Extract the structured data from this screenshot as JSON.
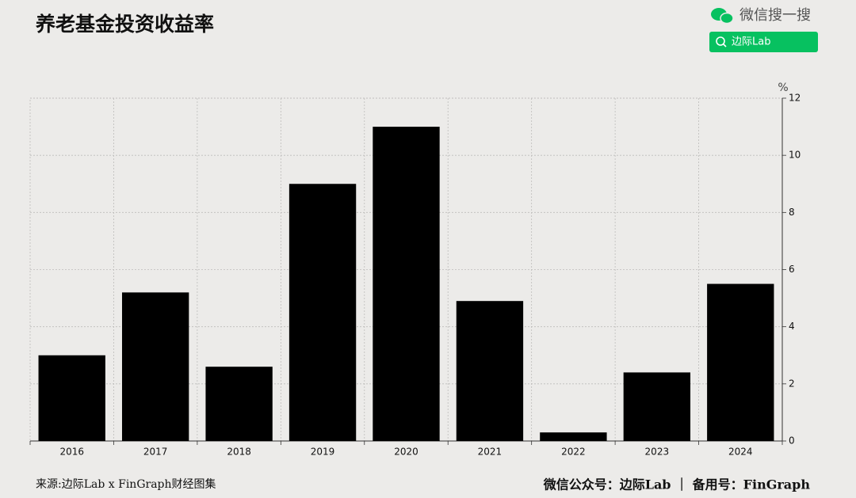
{
  "chart_data": {
    "type": "bar",
    "title": "养老基金投资收益率",
    "search_label": "微信搜一搜",
    "search_button": "边际Lab",
    "y_label": "%",
    "categories": [
      "2016",
      "2017",
      "2018",
      "2019",
      "2020",
      "2021",
      "2022",
      "2023",
      "2024"
    ],
    "values": [
      3.0,
      5.2,
      2.6,
      9.0,
      11.0,
      4.9,
      0.3,
      2.4,
      5.5
    ],
    "color": "#000000",
    "ylim": [
      0,
      12
    ],
    "yticks": [
      0,
      2,
      4,
      6,
      8,
      10,
      12
    ],
    "grid": true,
    "source": "来源:边际Lab x FinGraph财经图集",
    "footer": "微信公众号：边际Lab ｜ 备用号：FinGraph"
  }
}
